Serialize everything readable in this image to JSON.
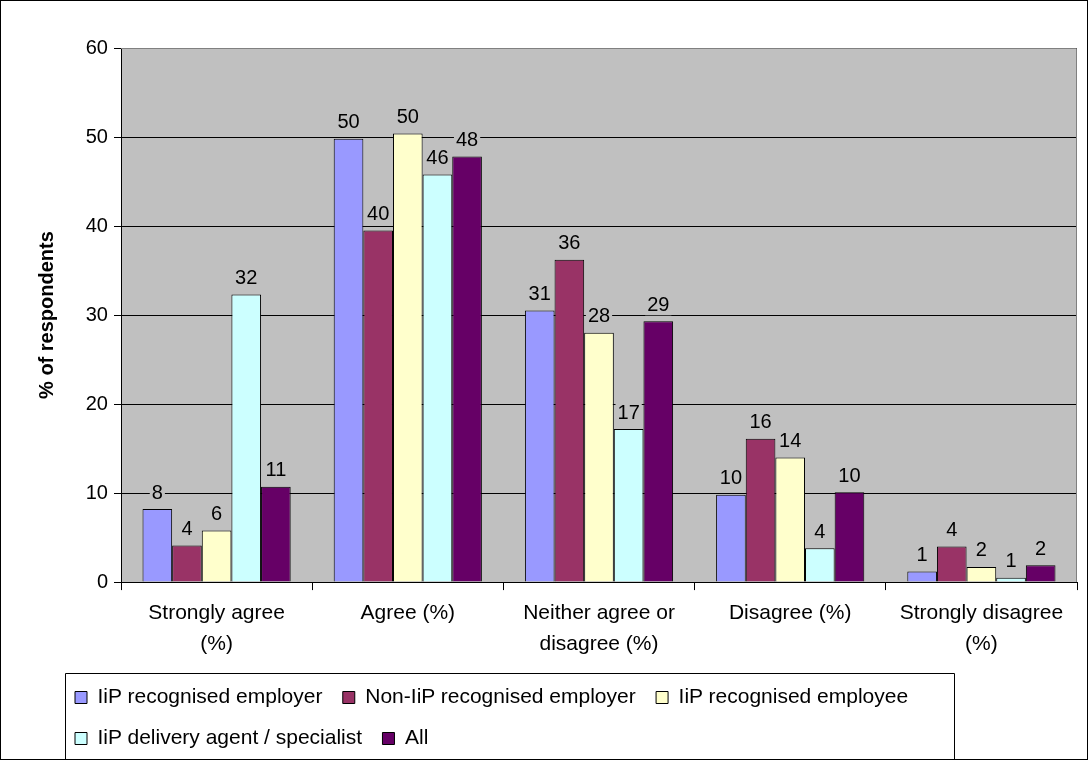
{
  "chart_data": {
    "type": "bar",
    "ylabel": "% of respondents",
    "categories": [
      "Strongly agree (%)",
      "Agree (%)",
      "Neither agree or disagree (%)",
      "Disagree (%)",
      "Strongly disagree (%)"
    ],
    "series": [
      {
        "name": "IiP recognised employer",
        "color": "#9999ff",
        "values": [
          8.2,
          49.8,
          30.5,
          9.8,
          1.2
        ],
        "value_labels": [
          "8",
          "50",
          "31",
          "10",
          "1"
        ]
      },
      {
        "name": "Non-IiP recognised employer",
        "color": "#993366",
        "values": [
          4.1,
          39.5,
          36.2,
          16.1,
          4.0
        ],
        "value_labels": [
          "4",
          "40",
          "36",
          "16",
          "4"
        ]
      },
      {
        "name": "IiP recognised employee",
        "color": "#ffffcc",
        "values": [
          5.8,
          50.4,
          28.0,
          14.0,
          1.7
        ],
        "value_labels": [
          "6",
          "50",
          "28",
          "14",
          "2"
        ]
      },
      {
        "name": "IiP delivery agent / specialist",
        "color": "#ccffff",
        "values": [
          32.3,
          45.8,
          17.2,
          3.8,
          0.5
        ],
        "value_labels": [
          "32",
          "46",
          "17",
          "4",
          "1"
        ]
      },
      {
        "name": "All",
        "color": "#660066",
        "values": [
          10.7,
          47.8,
          29.3,
          10.1,
          1.9
        ],
        "value_labels": [
          "11",
          "48",
          "29",
          "10",
          "2"
        ]
      }
    ],
    "ylim": [
      0,
      60
    ],
    "yticks": [
      0,
      10,
      20,
      30,
      40,
      50,
      60
    ],
    "grid": "y",
    "legend": "bottom"
  }
}
